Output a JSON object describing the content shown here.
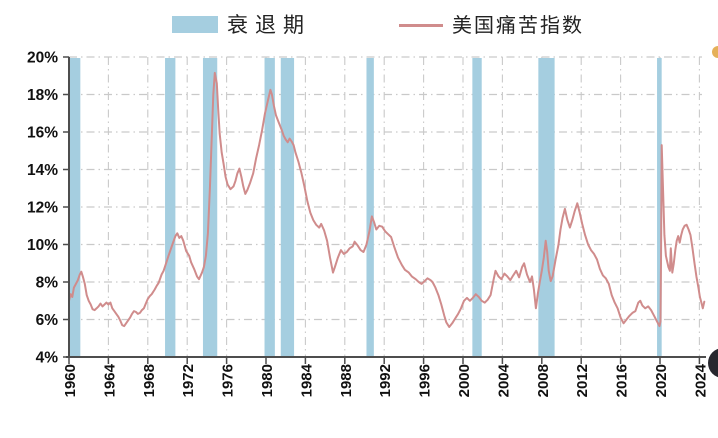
{
  "legend": {
    "recession_label": "衰退期",
    "line_label": "美国痛苦指数"
  },
  "axes": {
    "y_tick_labels": [
      "20%",
      "18%",
      "16%",
      "14%",
      "12%",
      "10%",
      "8%",
      "6%",
      "4%"
    ],
    "x_tick_labels": [
      "1960",
      "1964",
      "1968",
      "1972",
      "1976",
      "1980",
      "1984",
      "1988",
      "1992",
      "1996",
      "2000",
      "2004",
      "2008",
      "2012",
      "2016",
      "2020",
      "2024"
    ]
  },
  "colors": {
    "band": "#a5cee0",
    "line": "#d08c8c",
    "grid": "#c9c9c9",
    "axis": "#4d4d4d",
    "label_text": "#111111",
    "legend_text": "#222222",
    "watermark": "#27272e"
  },
  "chart_data": {
    "type": "line",
    "title": "",
    "xlabel": "",
    "ylabel": "",
    "xlim": [
      1960,
      2025.2
    ],
    "ylim": [
      4,
      20
    ],
    "x_ticks": [
      1960,
      1964,
      1968,
      1972,
      1976,
      1980,
      1984,
      1988,
      1992,
      1996,
      2000,
      2004,
      2008,
      2012,
      2016,
      2020,
      2024
    ],
    "y_ticks": [
      4,
      6,
      8,
      10,
      12,
      14,
      16,
      18,
      20
    ],
    "grid": "dash-dot gray, horizontal at every 2% and vertical at every 4 years",
    "legend_position": "top",
    "band_label": "衰退期",
    "recession_bands": [
      [
        1960.02,
        1961.15
      ],
      [
        1969.75,
        1970.8
      ],
      [
        1973.6,
        1975.05
      ],
      [
        1979.85,
        1980.9
      ],
      [
        1981.5,
        1982.85
      ],
      [
        1990.2,
        1990.95
      ],
      [
        2000.95,
        2001.9
      ],
      [
        2007.65,
        2009.3
      ],
      [
        2019.7,
        2020.17
      ]
    ],
    "series": [
      {
        "name": "美国痛苦指数",
        "color": "#d08c8c",
        "points": [
          [
            1960.0,
            7.0
          ],
          [
            1960.17,
            7.35
          ],
          [
            1960.33,
            7.2
          ],
          [
            1960.5,
            7.7
          ],
          [
            1960.7,
            7.9
          ],
          [
            1960.9,
            8.1
          ],
          [
            1961.1,
            8.4
          ],
          [
            1961.25,
            8.55
          ],
          [
            1961.4,
            8.3
          ],
          [
            1961.6,
            7.9
          ],
          [
            1961.8,
            7.3
          ],
          [
            1962.0,
            7.0
          ],
          [
            1962.2,
            6.8
          ],
          [
            1962.4,
            6.55
          ],
          [
            1962.6,
            6.5
          ],
          [
            1962.8,
            6.6
          ],
          [
            1963.0,
            6.7
          ],
          [
            1963.2,
            6.85
          ],
          [
            1963.4,
            6.7
          ],
          [
            1963.6,
            6.8
          ],
          [
            1963.8,
            6.9
          ],
          [
            1964.0,
            6.8
          ],
          [
            1964.2,
            6.9
          ],
          [
            1964.4,
            6.6
          ],
          [
            1964.6,
            6.45
          ],
          [
            1964.8,
            6.3
          ],
          [
            1965.0,
            6.15
          ],
          [
            1965.2,
            5.95
          ],
          [
            1965.4,
            5.7
          ],
          [
            1965.6,
            5.65
          ],
          [
            1965.8,
            5.8
          ],
          [
            1966.0,
            5.95
          ],
          [
            1966.2,
            6.1
          ],
          [
            1966.4,
            6.3
          ],
          [
            1966.6,
            6.45
          ],
          [
            1966.8,
            6.4
          ],
          [
            1967.0,
            6.3
          ],
          [
            1967.2,
            6.35
          ],
          [
            1967.4,
            6.5
          ],
          [
            1967.6,
            6.6
          ],
          [
            1967.8,
            6.85
          ],
          [
            1968.0,
            7.1
          ],
          [
            1968.2,
            7.25
          ],
          [
            1968.4,
            7.35
          ],
          [
            1968.7,
            7.6
          ],
          [
            1968.9,
            7.8
          ],
          [
            1969.1,
            7.95
          ],
          [
            1969.4,
            8.4
          ],
          [
            1969.6,
            8.6
          ],
          [
            1969.8,
            8.9
          ],
          [
            1970.1,
            9.4
          ],
          [
            1970.3,
            9.7
          ],
          [
            1970.5,
            10.0
          ],
          [
            1970.8,
            10.45
          ],
          [
            1971.0,
            10.6
          ],
          [
            1971.2,
            10.35
          ],
          [
            1971.4,
            10.45
          ],
          [
            1971.6,
            10.2
          ],
          [
            1971.9,
            9.65
          ],
          [
            1972.2,
            9.4
          ],
          [
            1972.4,
            9.05
          ],
          [
            1972.7,
            8.7
          ],
          [
            1973.0,
            8.3
          ],
          [
            1973.2,
            8.15
          ],
          [
            1973.5,
            8.5
          ],
          [
            1973.7,
            8.8
          ],
          [
            1973.9,
            9.4
          ],
          [
            1974.1,
            10.6
          ],
          [
            1974.3,
            13.0
          ],
          [
            1974.5,
            15.8
          ],
          [
            1974.65,
            18.0
          ],
          [
            1974.8,
            19.15
          ],
          [
            1975.0,
            18.6
          ],
          [
            1975.15,
            17.2
          ],
          [
            1975.3,
            15.9
          ],
          [
            1975.5,
            14.9
          ],
          [
            1975.7,
            14.3
          ],
          [
            1975.9,
            13.6
          ],
          [
            1976.1,
            13.2
          ],
          [
            1976.4,
            12.95
          ],
          [
            1976.7,
            13.1
          ],
          [
            1976.9,
            13.4
          ],
          [
            1977.1,
            13.8
          ],
          [
            1977.3,
            14.05
          ],
          [
            1977.5,
            13.6
          ],
          [
            1977.7,
            13.1
          ],
          [
            1977.9,
            12.7
          ],
          [
            1978.1,
            12.9
          ],
          [
            1978.4,
            13.3
          ],
          [
            1978.7,
            13.8
          ],
          [
            1979.0,
            14.6
          ],
          [
            1979.3,
            15.3
          ],
          [
            1979.6,
            16.1
          ],
          [
            1979.9,
            17.0
          ],
          [
            1980.2,
            17.7
          ],
          [
            1980.45,
            18.25
          ],
          [
            1980.6,
            18.0
          ],
          [
            1980.8,
            17.4
          ],
          [
            1981.0,
            16.9
          ],
          [
            1981.3,
            16.5
          ],
          [
            1981.6,
            16.1
          ],
          [
            1981.8,
            15.8
          ],
          [
            1982.0,
            15.6
          ],
          [
            1982.2,
            15.45
          ],
          [
            1982.4,
            15.65
          ],
          [
            1982.6,
            15.5
          ],
          [
            1982.8,
            15.3
          ],
          [
            1983.0,
            14.9
          ],
          [
            1983.3,
            14.4
          ],
          [
            1983.6,
            13.8
          ],
          [
            1983.9,
            13.1
          ],
          [
            1984.2,
            12.3
          ],
          [
            1984.5,
            11.7
          ],
          [
            1984.8,
            11.3
          ],
          [
            1985.1,
            11.05
          ],
          [
            1985.4,
            10.9
          ],
          [
            1985.6,
            11.1
          ],
          [
            1985.9,
            10.75
          ],
          [
            1986.2,
            10.2
          ],
          [
            1986.5,
            9.3
          ],
          [
            1986.8,
            8.5
          ],
          [
            1987.0,
            8.8
          ],
          [
            1987.3,
            9.3
          ],
          [
            1987.6,
            9.7
          ],
          [
            1987.9,
            9.5
          ],
          [
            1988.2,
            9.6
          ],
          [
            1988.5,
            9.8
          ],
          [
            1988.8,
            9.9
          ],
          [
            1989.0,
            10.15
          ],
          [
            1989.3,
            9.95
          ],
          [
            1989.6,
            9.7
          ],
          [
            1989.9,
            9.6
          ],
          [
            1990.2,
            10.0
          ],
          [
            1990.5,
            10.7
          ],
          [
            1990.75,
            11.5
          ],
          [
            1991.0,
            11.15
          ],
          [
            1991.2,
            10.8
          ],
          [
            1991.5,
            11.0
          ],
          [
            1991.8,
            10.95
          ],
          [
            1992.1,
            10.7
          ],
          [
            1992.4,
            10.55
          ],
          [
            1992.7,
            10.4
          ],
          [
            1993.0,
            9.9
          ],
          [
            1993.4,
            9.3
          ],
          [
            1993.8,
            8.9
          ],
          [
            1994.1,
            8.65
          ],
          [
            1994.5,
            8.5
          ],
          [
            1994.8,
            8.3
          ],
          [
            1995.2,
            8.15
          ],
          [
            1995.5,
            8.0
          ],
          [
            1995.8,
            7.9
          ],
          [
            1996.1,
            8.05
          ],
          [
            1996.4,
            8.2
          ],
          [
            1996.7,
            8.1
          ],
          [
            1996.9,
            8.0
          ],
          [
            1997.2,
            7.7
          ],
          [
            1997.5,
            7.3
          ],
          [
            1997.8,
            6.8
          ],
          [
            1998.1,
            6.2
          ],
          [
            1998.3,
            5.85
          ],
          [
            1998.6,
            5.6
          ],
          [
            1998.9,
            5.8
          ],
          [
            1999.2,
            6.05
          ],
          [
            1999.5,
            6.3
          ],
          [
            1999.8,
            6.6
          ],
          [
            2000.1,
            7.0
          ],
          [
            2000.4,
            7.15
          ],
          [
            2000.7,
            7.0
          ],
          [
            2001.0,
            7.15
          ],
          [
            2001.3,
            7.35
          ],
          [
            2001.6,
            7.2
          ],
          [
            2001.9,
            7.0
          ],
          [
            2002.2,
            6.9
          ],
          [
            2002.5,
            7.05
          ],
          [
            2002.8,
            7.3
          ],
          [
            2003.1,
            8.1
          ],
          [
            2003.3,
            8.6
          ],
          [
            2003.6,
            8.3
          ],
          [
            2003.9,
            8.15
          ],
          [
            2004.2,
            8.45
          ],
          [
            2004.5,
            8.3
          ],
          [
            2004.8,
            8.1
          ],
          [
            2005.1,
            8.35
          ],
          [
            2005.4,
            8.6
          ],
          [
            2005.7,
            8.25
          ],
          [
            2006.0,
            8.8
          ],
          [
            2006.2,
            9.0
          ],
          [
            2006.5,
            8.4
          ],
          [
            2006.8,
            8.0
          ],
          [
            2007.0,
            8.3
          ],
          [
            2007.2,
            7.6
          ],
          [
            2007.4,
            6.6
          ],
          [
            2007.6,
            7.4
          ],
          [
            2007.8,
            8.0
          ],
          [
            2008.0,
            8.6
          ],
          [
            2008.2,
            9.3
          ],
          [
            2008.4,
            10.2
          ],
          [
            2008.55,
            9.6
          ],
          [
            2008.7,
            8.6
          ],
          [
            2008.9,
            8.05
          ],
          [
            2009.1,
            8.3
          ],
          [
            2009.4,
            9.2
          ],
          [
            2009.7,
            10.0
          ],
          [
            2009.9,
            10.8
          ],
          [
            2010.1,
            11.4
          ],
          [
            2010.35,
            11.9
          ],
          [
            2010.6,
            11.3
          ],
          [
            2010.85,
            10.9
          ],
          [
            2011.1,
            11.3
          ],
          [
            2011.35,
            11.8
          ],
          [
            2011.6,
            12.2
          ],
          [
            2011.85,
            11.7
          ],
          [
            2012.1,
            11.1
          ],
          [
            2012.4,
            10.5
          ],
          [
            2012.7,
            10.0
          ],
          [
            2013.0,
            9.7
          ],
          [
            2013.3,
            9.5
          ],
          [
            2013.6,
            9.2
          ],
          [
            2013.9,
            8.7
          ],
          [
            2014.2,
            8.35
          ],
          [
            2014.5,
            8.2
          ],
          [
            2014.8,
            7.9
          ],
          [
            2015.1,
            7.3
          ],
          [
            2015.4,
            6.9
          ],
          [
            2015.7,
            6.6
          ],
          [
            2016.0,
            6.1
          ],
          [
            2016.3,
            5.8
          ],
          [
            2016.6,
            6.0
          ],
          [
            2016.9,
            6.2
          ],
          [
            2017.2,
            6.35
          ],
          [
            2017.5,
            6.45
          ],
          [
            2017.8,
            6.9
          ],
          [
            2018.0,
            7.0
          ],
          [
            2018.2,
            6.75
          ],
          [
            2018.5,
            6.6
          ],
          [
            2018.8,
            6.7
          ],
          [
            2019.1,
            6.5
          ],
          [
            2019.4,
            6.2
          ],
          [
            2019.7,
            5.9
          ],
          [
            2019.95,
            5.65
          ],
          [
            2020.05,
            5.9
          ],
          [
            2020.1,
            9.0
          ],
          [
            2020.17,
            15.3
          ],
          [
            2020.3,
            13.0
          ],
          [
            2020.45,
            10.5
          ],
          [
            2020.6,
            9.4
          ],
          [
            2020.85,
            8.8
          ],
          [
            2021.0,
            8.6
          ],
          [
            2021.1,
            9.8
          ],
          [
            2021.25,
            8.5
          ],
          [
            2021.4,
            9.0
          ],
          [
            2021.55,
            9.7
          ],
          [
            2021.7,
            10.2
          ],
          [
            2021.85,
            10.45
          ],
          [
            2022.0,
            10.1
          ],
          [
            2022.15,
            10.5
          ],
          [
            2022.3,
            10.8
          ],
          [
            2022.5,
            11.0
          ],
          [
            2022.7,
            11.05
          ],
          [
            2022.9,
            10.8
          ],
          [
            2023.1,
            10.5
          ],
          [
            2023.3,
            9.8
          ],
          [
            2023.5,
            9.0
          ],
          [
            2023.7,
            8.3
          ],
          [
            2023.9,
            7.7
          ],
          [
            2024.05,
            7.2
          ],
          [
            2024.2,
            6.9
          ],
          [
            2024.35,
            6.6
          ],
          [
            2024.5,
            6.95
          ]
        ]
      }
    ]
  }
}
